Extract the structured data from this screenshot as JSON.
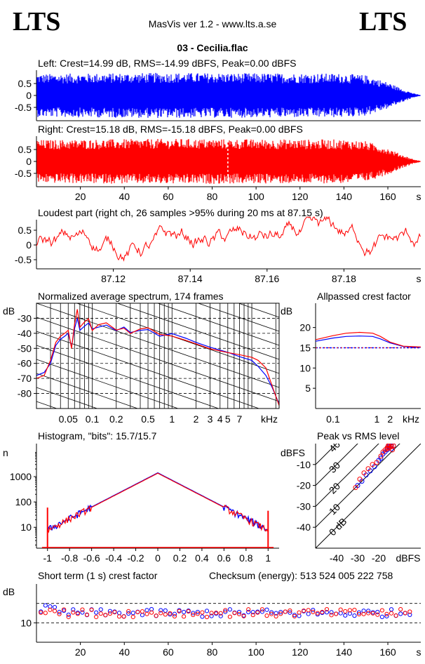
{
  "header": {
    "logo_left": "LTS",
    "logo_right": "LTS",
    "app": "MasVis ver 1.2 - www.lts.a.se",
    "file": "03 - Cecilia.flac"
  },
  "colors": {
    "left": "#0000ff",
    "right": "#ff0000",
    "axis": "#000000"
  },
  "chart_data": [
    {
      "id": "left-waveform",
      "type": "area",
      "title": "Left: Crest=14.99 dB, RMS=-14.99 dBFS, Peak=0.00 dBFS",
      "ylim": [
        -1,
        1
      ],
      "yticks": [
        "0.5",
        "0",
        "-0.5"
      ],
      "yvals": [
        0.5,
        0,
        -0.5
      ],
      "xlim": [
        0,
        175
      ],
      "xunit": "",
      "envelope_t": [
        0,
        20,
        60,
        100,
        140,
        150,
        160,
        166,
        172,
        175
      ],
      "envelope_a": [
        0.9,
        0.92,
        0.95,
        0.93,
        0.92,
        0.85,
        0.55,
        0.3,
        0.08,
        0.02
      ]
    },
    {
      "id": "right-waveform",
      "type": "area",
      "title": "Right: Crest=15.18 dB, RMS=-15.18 dBFS, Peak=0.00 dBFS",
      "ylim": [
        -1,
        1
      ],
      "yticks": [
        "0.5",
        "0",
        "-0.5"
      ],
      "yvals": [
        0.5,
        0,
        -0.5
      ],
      "xlim": [
        0,
        175
      ],
      "xticks": [
        "20",
        "40",
        "60",
        "80",
        "100",
        "120",
        "140",
        "160"
      ],
      "xtick_vals": [
        20,
        40,
        60,
        80,
        100,
        120,
        140,
        160
      ],
      "xunit": "s",
      "marker_at": 87.15,
      "envelope_t": [
        0,
        20,
        60,
        100,
        140,
        150,
        160,
        166,
        172,
        175
      ],
      "envelope_a": [
        0.9,
        0.92,
        0.95,
        0.93,
        0.92,
        0.85,
        0.55,
        0.3,
        0.08,
        0.02
      ]
    },
    {
      "id": "loudest-part",
      "type": "line",
      "title": "Loudest part (right ch, 26 samples >95% during 20 ms at 87.15 s)",
      "ylim": [
        -1,
        1
      ],
      "yticks": [
        "0.5",
        "0",
        "-0.5"
      ],
      "yvals": [
        0.5,
        0,
        -0.5
      ],
      "xlim": [
        87.1,
        87.2
      ],
      "xticks": [
        "87.12",
        "87.14",
        "87.16",
        "87.18"
      ],
      "xtick_vals": [
        87.12,
        87.14,
        87.16,
        87.18
      ],
      "xunit": "s"
    },
    {
      "id": "average-spectrum",
      "type": "line",
      "title": "Normalized average spectrum, 174 frames",
      "ylabel": "dB",
      "ylim": [
        -90,
        -20
      ],
      "yticks": [
        "-30",
        "-40",
        "-50",
        "-60",
        "-70",
        "-80"
      ],
      "yvals": [
        -30,
        -40,
        -50,
        -60,
        -70,
        -80
      ],
      "xscale": "log",
      "xlim": [
        0.02,
        22
      ],
      "xticks": [
        "0.05",
        "0.1",
        "0.2",
        "0.5",
        "1",
        "2",
        "3",
        "4",
        "5",
        "7"
      ],
      "xtick_vals": [
        0.05,
        0.1,
        0.2,
        0.5,
        1,
        2,
        3,
        4,
        5,
        7
      ],
      "xunit": "kHz",
      "f": [
        0.02,
        0.025,
        0.03,
        0.035,
        0.04,
        0.045,
        0.05,
        0.055,
        0.06,
        0.065,
        0.07,
        0.08,
        0.09,
        0.1,
        0.12,
        0.15,
        0.2,
        0.25,
        0.3,
        0.4,
        0.5,
        0.7,
        1,
        1.5,
        2,
        3,
        5,
        7,
        10,
        12,
        15,
        18,
        22
      ],
      "series": [
        {
          "name": "",
          "color": "left",
          "values": [
            -68,
            -66,
            -60,
            -48,
            -44,
            -42,
            -40,
            -49,
            -37,
            -30,
            -38,
            -35,
            -33,
            -38,
            -36,
            -34,
            -38,
            -36,
            -40,
            -39,
            -38,
            -41,
            -41,
            -44,
            -46,
            -49,
            -52,
            -55,
            -58,
            -62,
            -68,
            -76,
            -87
          ]
        },
        {
          "name": "",
          "color": "right",
          "values": [
            -70,
            -68,
            -58,
            -46,
            -42,
            -40,
            -38,
            -50,
            -34,
            -24,
            -36,
            -33,
            -31,
            -39,
            -35,
            -33,
            -37,
            -37,
            -41,
            -38,
            -37,
            -40,
            -42,
            -44,
            -47,
            -50,
            -53,
            -55,
            -56,
            -58,
            -63,
            -75,
            -88
          ]
        }
      ]
    },
    {
      "id": "allpassed-crest",
      "type": "line",
      "title": "Allpassed crest factor",
      "ylabel": "dB",
      "ylim": [
        0,
        26
      ],
      "yticks": [
        "20",
        "15",
        "10",
        "5"
      ],
      "yvals": [
        20,
        15,
        10,
        5
      ],
      "xscale": "log",
      "xlim": [
        0.04,
        10
      ],
      "xticks": [
        "0.1",
        "1",
        "2"
      ],
      "xtick_vals": [
        0.1,
        1,
        2
      ],
      "xunit": "kHz",
      "reference_db": 15,
      "f": [
        0.04,
        0.1,
        0.2,
        0.4,
        0.8,
        1.2,
        2,
        4,
        10
      ],
      "series": [
        {
          "name": "",
          "color": "left",
          "values": [
            16.6,
            17.4,
            17.8,
            17.9,
            17.8,
            17.2,
            16.2,
            15.3,
            15.1
          ]
        },
        {
          "name": "",
          "color": "right",
          "values": [
            17.0,
            18.0,
            18.6,
            18.8,
            18.6,
            17.8,
            16.4,
            15.4,
            15.2
          ]
        }
      ]
    },
    {
      "id": "histogram",
      "type": "line",
      "title": "Histogram, \"bits\": 15.7/15.7",
      "ylabel": "n",
      "yscale": "log",
      "ylim": [
        1.5,
        20000
      ],
      "yticks": [
        "1000",
        "100",
        "10"
      ],
      "yvals": [
        1000,
        100,
        10
      ],
      "xlim": [
        -1.1,
        1.1
      ],
      "xticks": [
        "-1",
        "-0.8",
        "-0.6",
        "-0.4",
        "-0.2",
        "0",
        "0.2",
        "0.4",
        "0.6",
        "0.8",
        "1"
      ],
      "xtick_vals": [
        -1,
        -0.8,
        -0.6,
        -0.4,
        -0.2,
        0,
        0.2,
        0.4,
        0.6,
        0.8,
        1
      ],
      "peak_count": 1400,
      "edge_count": 8,
      "edge_spike_counts": [
        60,
        45
      ]
    },
    {
      "id": "peak-vs-rms",
      "type": "scatter",
      "title": "Peak vs RMS level",
      "ylabel": "dBFS",
      "xunit": "dBFS",
      "xlim": [
        -50,
        0
      ],
      "ylim": [
        -50,
        0
      ],
      "yticks": [
        "-10",
        "-20",
        "-30",
        "-40"
      ],
      "yvals": [
        -10,
        -20,
        -30,
        -40
      ],
      "xticks": [
        "-40",
        "-30",
        "-20"
      ],
      "xtick_vals": [
        -40,
        -30,
        -20
      ],
      "diag_labels": [
        "40",
        "30",
        "20",
        "10",
        "0 dB"
      ],
      "diag_vals": [
        40,
        30,
        20,
        10,
        0
      ],
      "series": [
        {
          "name": "",
          "color": "left",
          "x": [
            -15,
            -14,
            -16,
            -13,
            -17,
            -15,
            -14,
            -18,
            -16,
            -19,
            -20,
            -22,
            -24,
            -26,
            -28,
            -30,
            -15,
            -14
          ],
          "y": [
            -2,
            -1,
            -3,
            -1,
            -4,
            -1.5,
            -0.5,
            -5,
            -2,
            -7,
            -8,
            -11,
            -13,
            -15,
            -18,
            -20,
            -0.5,
            -2.5
          ]
        },
        {
          "name": "",
          "color": "right",
          "x": [
            -15,
            -14,
            -16,
            -13,
            -17,
            -15,
            -14,
            -18,
            -16,
            -19,
            -21,
            -23,
            -25,
            -27,
            -29,
            -31,
            -15.5,
            -13.5
          ],
          "y": [
            -1,
            -0.5,
            -2,
            -1,
            -3,
            -2,
            -1.5,
            -4,
            -2.5,
            -6,
            -9,
            -10,
            -12,
            -14,
            -17,
            -21,
            -1,
            -3
          ]
        }
      ]
    },
    {
      "id": "short-term-crest",
      "type": "scatter",
      "title": "Short term (1 s) crest factor",
      "checksum": "Checksum (energy):   513 524 005 222 758",
      "ylabel": "dB",
      "ylim": [
        0,
        30
      ],
      "yticks": [
        "10"
      ],
      "yvals": [
        10
      ],
      "ref_lines": [
        10,
        20
      ],
      "xlim": [
        0,
        175
      ],
      "xticks": [
        "20",
        "40",
        "60",
        "80",
        "100",
        "120",
        "140",
        "160"
      ],
      "xtick_vals": [
        20,
        40,
        60,
        80,
        100,
        120,
        140,
        160
      ],
      "xunit": "s",
      "mean_db": 15
    }
  ]
}
